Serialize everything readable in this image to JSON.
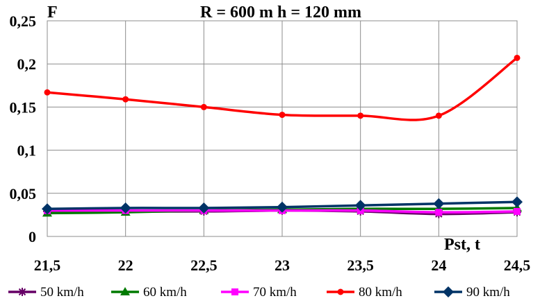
{
  "chart_data": {
    "type": "line",
    "title": "R = 600 m  h = 120 mm",
    "ylabel": "F",
    "xlabel": "Pst, t",
    "x": [
      21.5,
      22,
      22.5,
      23,
      23.5,
      24,
      24.5
    ],
    "x_tick_labels": [
      "21,5",
      "22",
      "22,5",
      "23",
      "23,5",
      "24",
      "24,5"
    ],
    "y_ticks": [
      0,
      0.05,
      0.1,
      0.15,
      0.2,
      0.25
    ],
    "y_tick_labels": [
      "0",
      "0,05",
      "0,1",
      "0,15",
      "0,2",
      "0,25"
    ],
    "xlim": [
      21.5,
      24.5
    ],
    "ylim": [
      0,
      0.25
    ],
    "grid": true,
    "legend_position": "bottom",
    "series": [
      {
        "name": "50 km/h",
        "color": "#660066",
        "marker": "asterisk",
        "values": [
          0.029,
          0.029,
          0.029,
          0.03,
          0.029,
          0.026,
          0.028
        ]
      },
      {
        "name": "60 km/h",
        "color": "#007a00",
        "marker": "triangle",
        "values": [
          0.027,
          0.028,
          0.03,
          0.031,
          0.032,
          0.032,
          0.033
        ]
      },
      {
        "name": "70 km/h",
        "color": "#ff00ff",
        "marker": "square",
        "values": [
          0.03,
          0.03,
          0.03,
          0.03,
          0.03,
          0.028,
          0.029
        ]
      },
      {
        "name": "80 km/h",
        "color": "#ff0000",
        "marker": "circle",
        "values": [
          0.167,
          0.159,
          0.15,
          0.141,
          0.14,
          0.14,
          0.207
        ]
      },
      {
        "name": "90 km/h",
        "color": "#003366",
        "marker": "diamond",
        "values": [
          0.032,
          0.033,
          0.033,
          0.034,
          0.036,
          0.038,
          0.04
        ]
      }
    ]
  }
}
